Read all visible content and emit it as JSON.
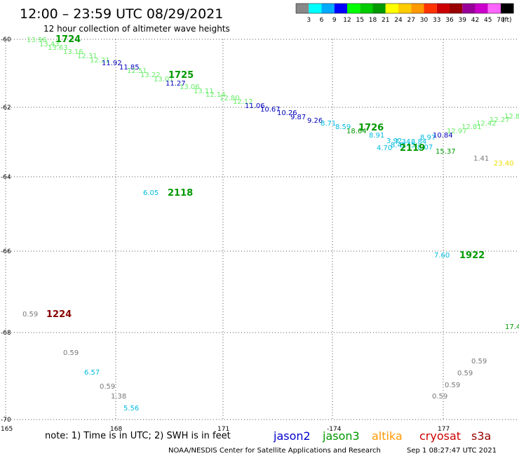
{
  "header": {
    "title": "12:00 – 23:59 UTC 08/29/2021",
    "subtitle": "12 hour collection of altimeter wave heights"
  },
  "color_scale": {
    "colors": [
      "#888888",
      "#00ffff",
      "#00aaff",
      "#0000ff",
      "#00ff00",
      "#00cc00",
      "#009900",
      "#ffff00",
      "#ffcc00",
      "#ff9900",
      "#ff3300",
      "#cc0000",
      "#990000",
      "#990099",
      "#cc00cc",
      "#ff66ff",
      "#000000"
    ],
    "labels": [
      "3",
      "6",
      "9",
      "12",
      "15",
      "18",
      "21",
      "24",
      "27",
      "30",
      "33",
      "36",
      "39",
      "42",
      "45",
      "70"
    ],
    "unit": "(ft)"
  },
  "axes": {
    "lat_labels": [
      "-60",
      "-62",
      "-64",
      "-66",
      "-68",
      "-70"
    ],
    "lon_labels": [
      "165",
      "168",
      "171",
      "-174",
      "177"
    ]
  },
  "colors": {
    "light_green": "#66ee66",
    "green": "#009900",
    "cyan": "#00bbdd",
    "blue": "#0000bb",
    "gray": "#777777",
    "yellow": "#eedd00",
    "dark_red": "#880000"
  },
  "passes": [
    {
      "label": "1724",
      "satellite": "jason3"
    },
    {
      "label": "1725",
      "satellite": "jason3"
    },
    {
      "label": "1726",
      "satellite": "jason3"
    },
    {
      "label": "2119",
      "satellite": "jason3"
    },
    {
      "label": "2118",
      "satellite": "jason3"
    },
    {
      "label": "1922",
      "satellite": "jason3"
    },
    {
      "label": "1224",
      "satellite": "cryosat"
    }
  ],
  "swh_values": [
    {
      "v": "13.96",
      "c": "light_green"
    },
    {
      "v": "13.43",
      "c": "light_green"
    },
    {
      "v": "13.63",
      "c": "light_green"
    },
    {
      "v": "13.16",
      "c": "light_green"
    },
    {
      "v": "12.31",
      "c": "light_green"
    },
    {
      "v": "12.21",
      "c": "light_green"
    },
    {
      "v": "11.92",
      "c": "blue"
    },
    {
      "v": "11.85",
      "c": "blue"
    },
    {
      "v": "12.51",
      "c": "light_green"
    },
    {
      "v": "13.22",
      "c": "light_green"
    },
    {
      "v": "13.01",
      "c": "light_green"
    },
    {
      "v": "11.27",
      "c": "blue"
    },
    {
      "v": "13.06",
      "c": "light_green"
    },
    {
      "v": "13.11",
      "c": "light_green"
    },
    {
      "v": "12.14",
      "c": "light_green"
    },
    {
      "v": "12.80",
      "c": "light_green"
    },
    {
      "v": "12.12",
      "c": "light_green"
    },
    {
      "v": "11.06",
      "c": "blue"
    },
    {
      "v": "10.67",
      "c": "blue"
    },
    {
      "v": "10.26",
      "c": "blue"
    },
    {
      "v": "9.87",
      "c": "blue"
    },
    {
      "v": "9.26",
      "c": "blue"
    },
    {
      "v": "8.71",
      "c": "cyan"
    },
    {
      "v": "8.59",
      "c": "cyan"
    },
    {
      "v": "18.64",
      "c": "green"
    },
    {
      "v": "8.91",
      "c": "cyan"
    },
    {
      "v": "3.92",
      "c": "cyan"
    },
    {
      "v": "7.34",
      "c": "cyan"
    },
    {
      "v": "8.47",
      "c": "cyan"
    },
    {
      "v": "8.45",
      "c": "cyan"
    },
    {
      "v": "4.70",
      "c": "cyan"
    },
    {
      "v": "8.84",
      "c": "cyan"
    },
    {
      "v": "8.97",
      "c": "cyan"
    },
    {
      "v": "10.84",
      "c": "blue"
    },
    {
      "v": "12.97",
      "c": "light_green"
    },
    {
      "v": "12.81",
      "c": "light_green"
    },
    {
      "v": "12.42",
      "c": "light_green"
    },
    {
      "v": "12.27",
      "c": "light_green"
    },
    {
      "v": "12.8",
      "c": "light_green"
    },
    {
      "v": "8.07",
      "c": "cyan"
    },
    {
      "v": "15.37",
      "c": "green"
    },
    {
      "v": "1.41",
      "c": "gray"
    },
    {
      "v": "23.40",
      "c": "yellow"
    },
    {
      "v": "6.05",
      "c": "cyan"
    },
    {
      "v": "7.60",
      "c": "cyan"
    },
    {
      "v": "0.59",
      "c": "gray"
    },
    {
      "v": "17.4",
      "c": "green"
    },
    {
      "v": "0.59",
      "c": "gray"
    },
    {
      "v": "6.57",
      "c": "cyan"
    },
    {
      "v": "0.59",
      "c": "gray"
    },
    {
      "v": "1.38",
      "c": "gray"
    },
    {
      "v": "5.56",
      "c": "cyan"
    },
    {
      "v": "0.59",
      "c": "gray"
    },
    {
      "v": "0.59",
      "c": "gray"
    },
    {
      "v": "0.59",
      "c": "gray"
    },
    {
      "v": "0.59",
      "c": "gray"
    }
  ],
  "footer": {
    "note": "note:  1) Time is in UTC;  2) SWH is in feet",
    "satellites": [
      {
        "name": "jason2",
        "color": "#0000cc"
      },
      {
        "name": "jason3",
        "color": "#009900"
      },
      {
        "name": "altika",
        "color": "#ff9900"
      },
      {
        "name": "cryosat",
        "color": "#cc0000"
      },
      {
        "name": "s3a",
        "color": "#990000"
      }
    ],
    "credit": "NOAA/NESDIS Center for Satellite Applications and Research",
    "timestamp": "Sep  1 08:27:47 UTC 2021"
  }
}
